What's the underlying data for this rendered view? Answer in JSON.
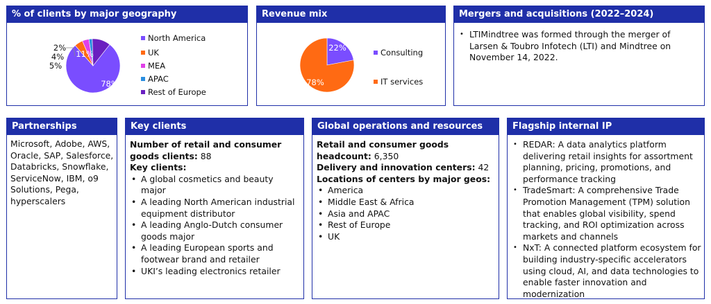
{
  "geography": {
    "title": "% of clients by major geography",
    "chart_data": {
      "type": "pie",
      "categories": [
        "North America",
        "UK",
        "MEA",
        "APAC",
        "Rest of Europe"
      ],
      "values": [
        78,
        5,
        4,
        2,
        11
      ],
      "labels": [
        "78%",
        "5%",
        "4%",
        "2%",
        "11%"
      ],
      "colors": [
        "#7a4dff",
        "#ff6a13",
        "#e040e8",
        "#2a8ee0",
        "#6a1fc0"
      ],
      "legend_position": "right"
    }
  },
  "revenue_mix": {
    "title": "Revenue mix",
    "chart_data": {
      "type": "pie",
      "categories": [
        "Consulting",
        "IT services"
      ],
      "values": [
        22,
        78
      ],
      "labels": [
        "22%",
        "78%"
      ],
      "colors": [
        "#7a4dff",
        "#ff6a13"
      ],
      "legend_position": "right"
    }
  },
  "mergers": {
    "title": "Mergers and acquisitions (2022–2024)",
    "items": [
      "LTIMindtree was formed through the merger of Larsen & Toubro Infotech (LTI) and Mindtree on November 14, 2022."
    ]
  },
  "partnerships": {
    "title": "Partnerships",
    "text": "Microsoft, Adobe, AWS, Oracle, SAP, Salesforce, Databricks, Snowflake, ServiceNow, IBM, o9 Solutions, Pega, hyperscalers"
  },
  "key_clients": {
    "title": "Key clients",
    "count_label": "Number of retail and consumer goods clients:",
    "count_value": "88",
    "list_label": "Key clients:",
    "items": [
      "A global cosmetics and beauty major",
      "A leading North American industrial equipment distributor",
      "A leading Anglo-Dutch consumer goods major",
      "A leading European sports and footwear brand and retailer",
      "UKI’s leading electronics retailer"
    ]
  },
  "global_ops": {
    "title": "Global operations and resources",
    "headcount_label": "Retail and consumer goods headcount:",
    "headcount_value": "6,350",
    "centers_label": "Delivery and innovation centers:",
    "centers_value": "42",
    "locations_label": "Locations of centers by major geos:",
    "locations": [
      "America",
      "Middle East & Africa",
      "Asia and APAC",
      "Rest of Europe",
      "UK"
    ]
  },
  "flagship_ip": {
    "title": "Flagship internal IP",
    "items": [
      "REDAR: A data analytics platform delivering retail insights for assortment planning, pricing, promotions, and performance tracking",
      "TradeSmart: A comprehensive Trade Promotion Management (TPM) solution that enables global visibility, spend tracking, and ROI optimization across markets and channels",
      "NxT: A connected platform ecosystem for building industry-specific accelerators using cloud, AI, and data technologies to enable faster innovation and modernization"
    ]
  }
}
